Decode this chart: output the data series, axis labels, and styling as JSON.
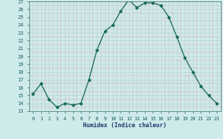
{
  "xlabel": "Humidex (Indice chaleur)",
  "x": [
    0,
    1,
    2,
    3,
    4,
    5,
    6,
    7,
    8,
    9,
    10,
    11,
    12,
    13,
    14,
    15,
    16,
    17,
    18,
    19,
    20,
    21,
    22,
    23
  ],
  "y": [
    15.2,
    16.5,
    14.5,
    13.5,
    14.0,
    13.8,
    14.0,
    17.0,
    20.8,
    23.2,
    24.0,
    25.8,
    27.2,
    26.2,
    26.8,
    26.8,
    26.5,
    25.0,
    22.5,
    19.8,
    18.0,
    16.2,
    15.0,
    14.0
  ],
  "ylim": [
    13,
    27
  ],
  "yticks": [
    13,
    14,
    15,
    16,
    17,
    18,
    19,
    20,
    21,
    22,
    23,
    24,
    25,
    26,
    27
  ],
  "line_color": "#1a6b5a",
  "marker": "D",
  "marker_size": 2,
  "bg_color": "#ceeaea",
  "grid_color_minor": "#c2dcdc",
  "grid_color_major": "#b8cccc",
  "tick_color": "#1a5a5a",
  "label_color": "#1a3a6a"
}
